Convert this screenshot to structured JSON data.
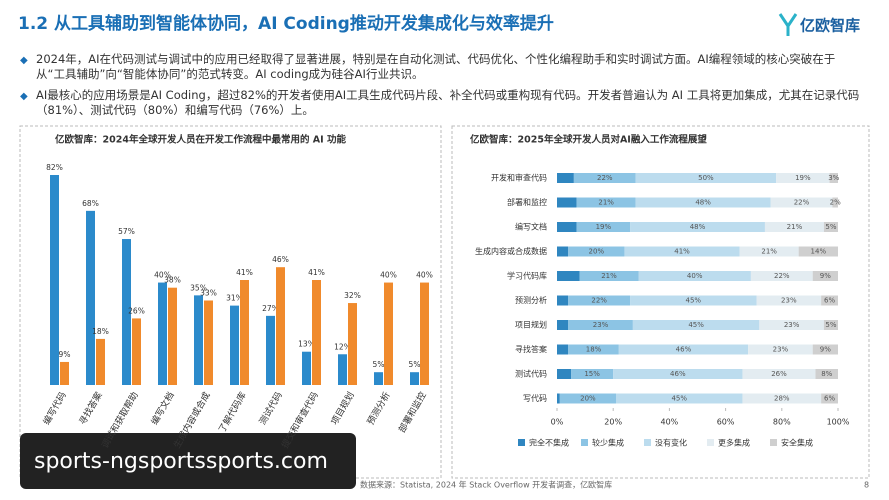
{
  "header": {
    "title": "1.2 从工具辅助到智能体协同，AI Coding推动开发集成化与效率提升",
    "logo": "亿欧智库"
  },
  "bullets": [
    "2024年，AI在代码测试与调试中的应用已经取得了显著进展，特别是在自动化测试、代码优化、个性化编程助手和实时调试方面。AI编程领域的核心突破在于从“工具辅助”向“智能体协同”的范式转变。AI coding成为硅谷AI行业共识。",
    "AI最核心的应用场景是AI Coding，超过82%的开发者使用AI工具生成代码片段、补全代码或重构现有代码。开发者普遍认为 AI 工具将更加集成，尤其在记录代码（81%）、测试代码（80%）和编写代码（76%）上。"
  ],
  "chart_data": [
    {
      "type": "bar",
      "title": "亿欧智库：2024年全球开发人员在开发工作流程中最常用的 AI 功能",
      "categories": [
        "编写代码",
        "寻找答案",
        "调试和获取帮助",
        "编写文档",
        "生成内容或合成",
        "了解代码库",
        "测试代码",
        "提交和审查代码",
        "项目规划",
        "预测分析",
        "部署和监控"
      ],
      "series": [
        {
          "color": "#2b8acb",
          "values": [
            82,
            68,
            57,
            40,
            35,
            31,
            27,
            13,
            12,
            5,
            5
          ],
          "value_labels": [
            "82%",
            "68%",
            "57%",
            "40%",
            "35%",
            "31%",
            "27%",
            "13%",
            "12%",
            "5%",
            "5%"
          ]
        },
        {
          "color": "#f08a2c",
          "values": [
            9,
            18,
            26,
            38,
            33,
            41,
            46,
            41,
            32,
            40,
            40
          ],
          "value_labels": [
            "9%",
            "18%",
            "26%",
            "38%",
            "33%",
            "41%",
            "46%",
            "41%",
            "32%",
            "40%",
            "40%"
          ]
        }
      ]
    },
    {
      "type": "stacked_barh",
      "title": "亿欧智库：2025年全球开发人员对AI融入工作流程展望",
      "categories": [
        "开发和审查代码",
        "部署和监控",
        "编写文档",
        "生成内容或合成数据",
        "学习代码库",
        "预测分析",
        "项目规划",
        "寻找答案",
        "测试代码",
        "写代码"
      ],
      "series": [
        {
          "name": "完全不集成",
          "color": "#2f86c0",
          "values": [
            6,
            7,
            7,
            4,
            8,
            4,
            4,
            4,
            5,
            1
          ]
        },
        {
          "name": "较少集成",
          "color": "#8cc4e4",
          "values": [
            22,
            21,
            19,
            20,
            21,
            22,
            23,
            18,
            15,
            20
          ],
          "value_labels": [
            "22%",
            "21%",
            "19%",
            "20%",
            "21%",
            "22%",
            "23%",
            "18%",
            "15%",
            "20%"
          ]
        },
        {
          "name": "没有变化",
          "color": "#bcdcee",
          "values": [
            50,
            48,
            48,
            41,
            40,
            45,
            45,
            46,
            46,
            45
          ],
          "value_labels": [
            "50%",
            "48%",
            "48%",
            "41%",
            "40%",
            "45%",
            "45%",
            "46%",
            "46%",
            "45%"
          ]
        },
        {
          "name": "更多集成",
          "color": "#e3ecf1",
          "values": [
            19,
            22,
            21,
            21,
            22,
            23,
            23,
            23,
            26,
            28
          ],
          "value_labels": [
            "19%",
            "22%",
            "21%",
            "21%",
            "22%",
            "23%",
            "23%",
            "23%",
            "26%",
            "28%"
          ]
        },
        {
          "name": "安全集成",
          "color": "#cfcfcf",
          "values": [
            3,
            2,
            5,
            14,
            9,
            6,
            5,
            9,
            8,
            6
          ],
          "value_labels": [
            "3%",
            "2%",
            "5%",
            "14%",
            "9%",
            "6%",
            "5%",
            "9%",
            "8%",
            "6%"
          ]
        }
      ],
      "xlim": [
        0,
        100
      ],
      "xticks": [
        {
          "value": 0,
          "label": "0%"
        },
        {
          "value": 20,
          "label": "20%"
        },
        {
          "value": 40,
          "label": "40%"
        },
        {
          "value": 60,
          "label": "60%"
        },
        {
          "value": 80,
          "label": "80%"
        },
        {
          "value": 100,
          "label": "100%"
        }
      ],
      "legend": "bottom"
    }
  ],
  "watermark": "sports-ngsportssports.com",
  "source": "数据来源：Statista, 2024 年 Stack Overflow 开发者调查，亿欧智库",
  "page_number": "8"
}
